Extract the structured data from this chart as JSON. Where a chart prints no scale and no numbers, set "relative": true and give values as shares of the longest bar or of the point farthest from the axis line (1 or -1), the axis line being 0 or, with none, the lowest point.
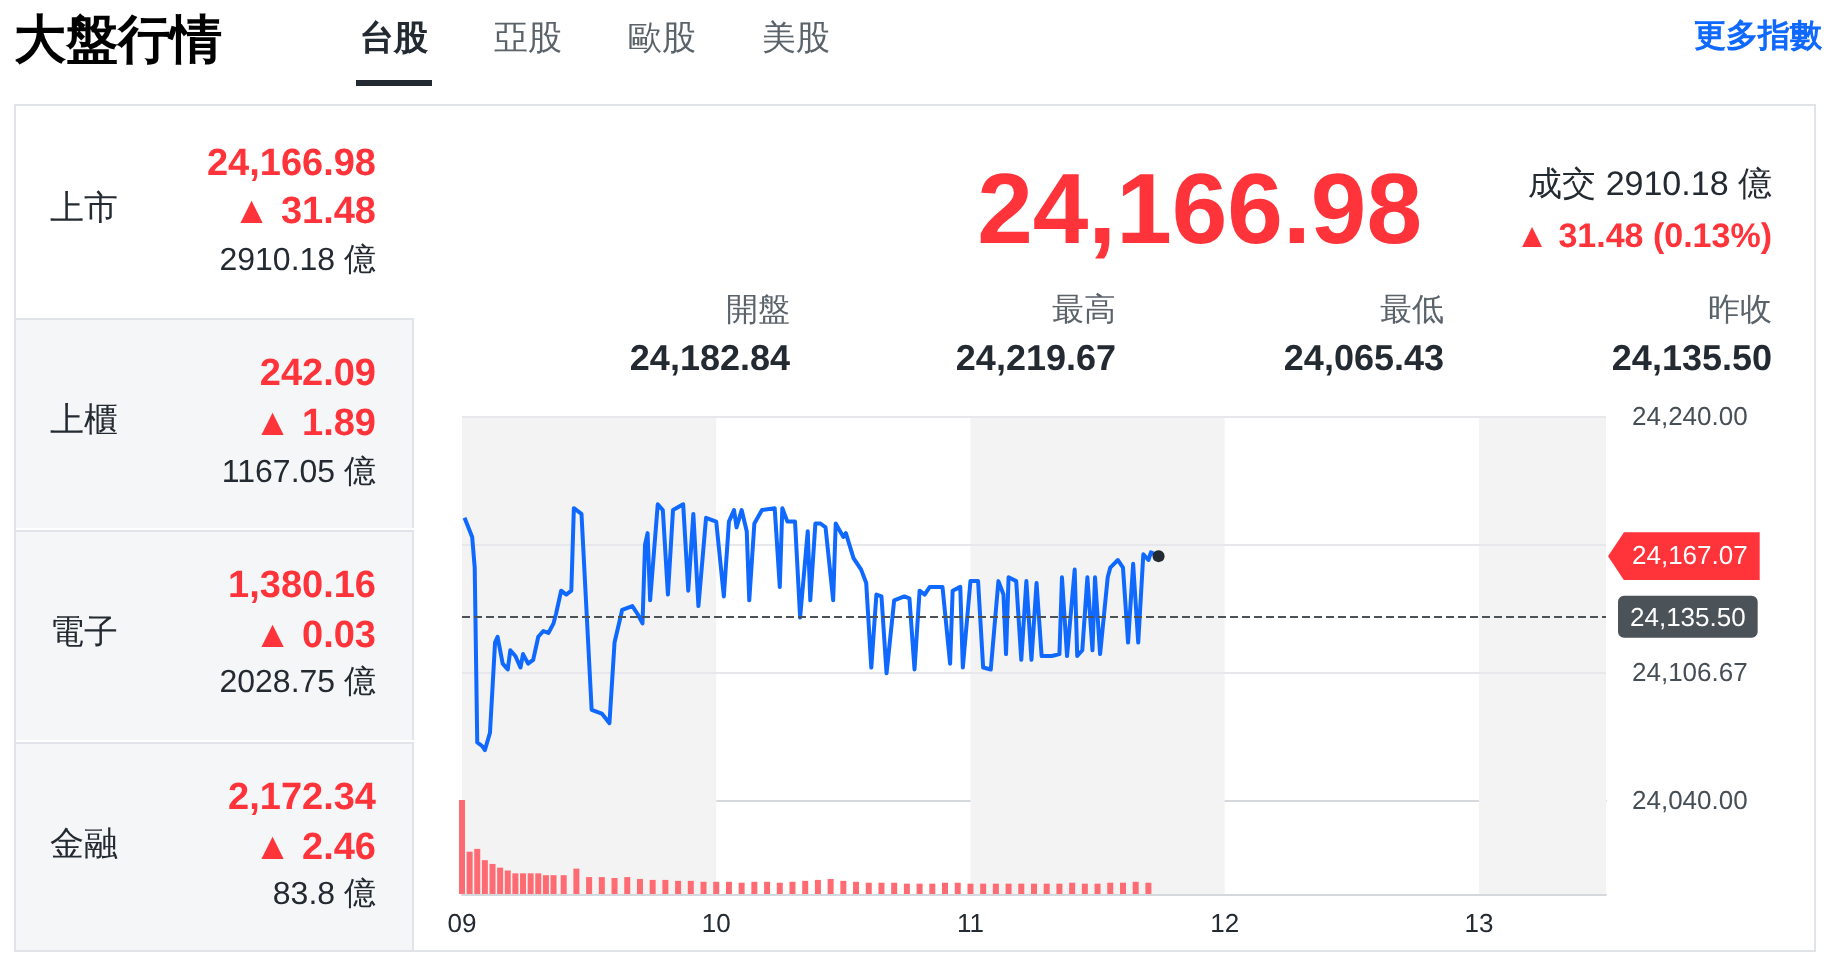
{
  "chart_data": [
    {
      "type": "other",
      "title": "大盤行情",
      "annotations": [
        "台股",
        "亞股",
        "歐股",
        "美股",
        "更多指數",
        "上市",
        "24,166.98",
        "▲ 31.48",
        "2910.18 億",
        "上櫃",
        "242.09",
        "▲ 1.89",
        "1167.05 億",
        "電子",
        "1,380.16",
        "▲ 0.03",
        "2028.75 億",
        "金融",
        "2,172.34",
        "▲ 2.46",
        "83.8 億",
        "24,166.98",
        "成交 2910.18 億",
        "▲ 31.48 (0.13%)",
        "開盤",
        "24,182.84",
        "最高",
        "24,219.67",
        "最低",
        "24,065.43",
        "昨收",
        "24,135.50"
      ]
    },
    {
      "type": "line",
      "color": "#0f69ff",
      "marker": "none",
      "tick_labels": "y",
      "grid": true,
      "x": [
        9.01,
        9.04,
        9.05,
        9.06,
        9.08,
        9.09,
        9.11,
        9.13,
        9.14,
        9.16,
        9.18,
        9.19,
        9.21,
        9.23,
        9.24,
        9.26,
        9.28,
        9.3,
        9.32,
        9.34,
        9.36,
        9.37,
        9.39,
        9.41,
        9.43,
        9.44,
        9.47,
        9.51,
        9.55,
        9.58,
        9.6,
        9.63,
        9.67,
        9.69,
        9.71,
        9.72,
        9.73,
        9.74,
        9.77,
        9.79,
        9.81,
        9.83,
        9.87,
        9.89,
        9.91,
        9.93,
        9.96,
        10.0,
        10.03,
        10.05,
        10.07,
        10.08,
        10.1,
        10.12,
        10.13,
        10.15,
        10.18,
        10.23,
        10.25,
        10.26,
        10.28,
        10.31,
        10.33,
        10.36,
        10.37,
        10.39,
        10.41,
        10.43,
        10.46,
        10.47,
        10.5,
        10.51,
        10.54,
        10.57,
        10.59,
        10.61,
        10.63,
        10.65,
        10.67,
        10.7,
        10.74,
        10.76,
        10.78,
        10.8,
        10.82,
        10.84,
        10.86,
        10.89,
        10.92,
        10.93,
        10.96,
        10.97,
        11.0,
        11.03,
        11.05,
        11.08,
        11.11,
        11.13,
        11.14,
        11.15,
        11.18,
        11.2,
        11.22,
        11.24,
        11.26,
        11.28,
        11.32,
        11.35,
        11.36,
        11.38,
        11.41,
        11.42,
        11.44,
        11.46,
        11.48,
        11.49,
        11.51,
        11.54,
        11.55,
        11.58,
        11.6,
        11.62,
        11.64,
        11.66,
        11.68,
        11.7,
        11.71,
        11.74
      ],
      "values": [
        24187,
        24177,
        24161,
        24070,
        24068,
        24066,
        24075,
        24122,
        24125,
        24111,
        24108,
        24118,
        24115,
        24109,
        24116,
        24111,
        24113,
        24125,
        24128,
        24127,
        24132,
        24137,
        24149,
        24147,
        24149,
        24192,
        24189,
        24087,
        24085,
        24080,
        24122,
        24139,
        24141,
        24137,
        24132,
        24173,
        24179,
        24144,
        24194,
        24191,
        24147,
        24191,
        24194,
        24149,
        24189,
        24141,
        24187,
        24185,
        24146,
        24185,
        24191,
        24182,
        24191,
        24180,
        24144,
        24184,
        24191,
        24192,
        24151,
        24192,
        24185,
        24185,
        24135,
        24180,
        24144,
        24184,
        24184,
        24182,
        24144,
        24184,
        24177,
        24179,
        24166,
        24160,
        24153,
        24109,
        24147,
        24146,
        24106,
        24144,
        24146,
        24145,
        24108,
        24149,
        24147,
        24151,
        24151,
        24151,
        24111,
        24149,
        24151,
        24109,
        24154,
        24154,
        24109,
        24108,
        24154,
        24147,
        24116,
        24156,
        24154,
        24113,
        24154,
        24113,
        24153,
        24115,
        24115,
        24116,
        24156,
        24115,
        24160,
        24115,
        24118,
        24156,
        24118,
        24156,
        24116,
        24156,
        24161,
        24165,
        24161,
        24122,
        24163,
        24122,
        24168,
        24165,
        24169,
        24167
      ],
      "xlim": [
        9,
        13.5
      ],
      "xticks": [
        9,
        10,
        11,
        12,
        13
      ],
      "ylim": [
        24040,
        24240
      ],
      "yticks": [
        {
          "value": 24040,
          "label": "24,040.00"
        },
        {
          "value": 24106.67,
          "label": "24,106.67"
        },
        {
          "value": 24173.33,
          "label": null
        },
        {
          "value": 24240,
          "label": "24,240.00"
        }
      ],
      "ref_lines": [
        {
          "axis": "y",
          "value": 24135.5,
          "label": "24,135.50",
          "color": "#4b5258",
          "line_style": "dashed"
        }
      ],
      "annotations": [
        "24,167.07"
      ]
    },
    {
      "type": "bar",
      "color": "#ff6b73",
      "relative": true,
      "tick_labels": "x",
      "x": [
        9.0,
        9.03,
        9.06,
        9.09,
        9.12,
        9.15,
        9.18,
        9.21,
        9.24,
        9.27,
        9.3,
        9.33,
        9.36,
        9.4,
        9.45,
        9.5,
        9.55,
        9.6,
        9.65,
        9.7,
        9.75,
        9.8,
        9.85,
        9.9,
        9.95,
        10.0,
        10.05,
        10.1,
        10.15,
        10.2,
        10.25,
        10.3,
        10.35,
        10.4,
        10.45,
        10.5,
        10.55,
        10.6,
        10.65,
        10.7,
        10.75,
        10.8,
        10.85,
        10.9,
        10.95,
        11.0,
        11.05,
        11.1,
        11.15,
        11.2,
        11.25,
        11.3,
        11.35,
        11.4,
        11.45,
        11.5,
        11.55,
        11.6,
        11.65,
        11.7
      ],
      "values": [
        1.0,
        0.45,
        0.48,
        0.36,
        0.32,
        0.28,
        0.25,
        0.22,
        0.22,
        0.22,
        0.22,
        0.2,
        0.2,
        0.2,
        0.27,
        0.18,
        0.18,
        0.17,
        0.18,
        0.16,
        0.15,
        0.15,
        0.14,
        0.14,
        0.13,
        0.13,
        0.13,
        0.12,
        0.13,
        0.13,
        0.12,
        0.13,
        0.14,
        0.15,
        0.16,
        0.14,
        0.13,
        0.12,
        0.12,
        0.12,
        0.11,
        0.11,
        0.11,
        0.12,
        0.12,
        0.11,
        0.11,
        0.11,
        0.11,
        0.11,
        0.11,
        0.11,
        0.11,
        0.12,
        0.11,
        0.11,
        0.12,
        0.12,
        0.13,
        0.12
      ],
      "xlim": [
        9,
        13.5
      ],
      "xticks": [
        {
          "value": 9,
          "label": "09"
        },
        10,
        11,
        12,
        13
      ]
    }
  ]
}
